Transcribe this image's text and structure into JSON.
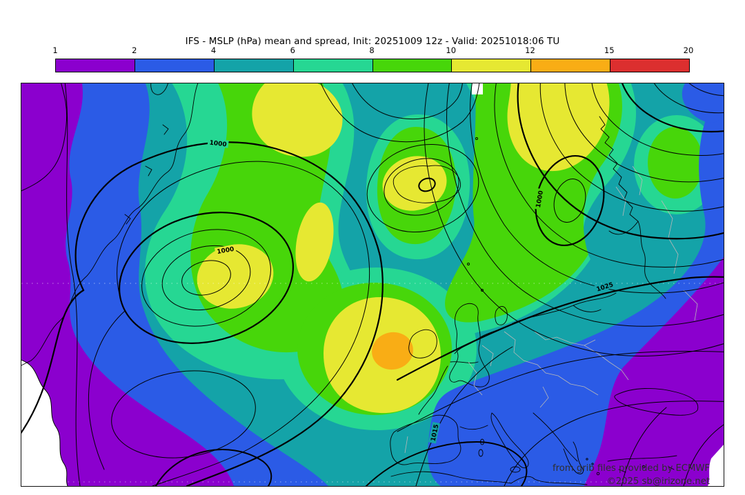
{
  "title": "IFS - MSLP (hPa) mean and spread, Init: 20251009 12z - Valid: 20251018:06 TU",
  "colorbar": {
    "unit": "hPa",
    "ticks": [
      "1",
      "2",
      "4",
      "6",
      "8",
      "10",
      "12",
      "15",
      "20"
    ],
    "segments": [
      {
        "label": "1-2",
        "color": "#8B00CE"
      },
      {
        "label": "2-4",
        "color": "#2B5BE6"
      },
      {
        "label": "4-6",
        "color": "#14A3A8"
      },
      {
        "label": "6-8",
        "color": "#26D793"
      },
      {
        "label": "8-10",
        "color": "#47D60A"
      },
      {
        "label": "10-12",
        "color": "#E6E832"
      },
      {
        "label": "12-15",
        "color": "#F9AD15"
      },
      {
        "label": "15-20",
        "color": "#DC2F2F"
      }
    ]
  },
  "map": {
    "contour_labels": [
      {
        "value": "1000"
      },
      {
        "value": "1000"
      },
      {
        "value": "1000"
      },
      {
        "value": "1015"
      },
      {
        "value": "1025"
      }
    ],
    "attribution_line1": "from grib files provided by ECMWF",
    "attribution_line2": "©2025 sb@irizone.net"
  },
  "chart_data": {
    "type": "heatmap",
    "title": "IFS - MSLP (hPa) mean and spread, Init: 20251009 12z - Valid: 20251018:06 TU",
    "model": "IFS",
    "variable": "MSLP mean and spread",
    "units": "hPa",
    "init": "20251009 12z",
    "valid": "20251018:06 TU",
    "region": "North Atlantic and Europe",
    "colorbar_levels": [
      1,
      2,
      4,
      6,
      8,
      10,
      12,
      15,
      20
    ],
    "colorbar_colors": [
      "#8B00CE",
      "#2B5BE6",
      "#14A3A8",
      "#26D793",
      "#47D60A",
      "#E6E832",
      "#F9AD15",
      "#DC2F2F"
    ],
    "shading": "ensemble spread of MSLP (hPa), filled",
    "contours": "ensemble mean MSLP isobars (hPa), black lines",
    "isobar_labels_visible": [
      1000,
      1000,
      1000,
      1015,
      1025
    ],
    "legend_position": "top horizontal colorbar",
    "notes": "Spread maxima (10-15 hPa, yellow/orange) near Iceland, SW of Ireland and over Scandinavia; low spread (1-4 hPa, purple/blue) on western edge and over SE Europe / Mediterranean"
  }
}
